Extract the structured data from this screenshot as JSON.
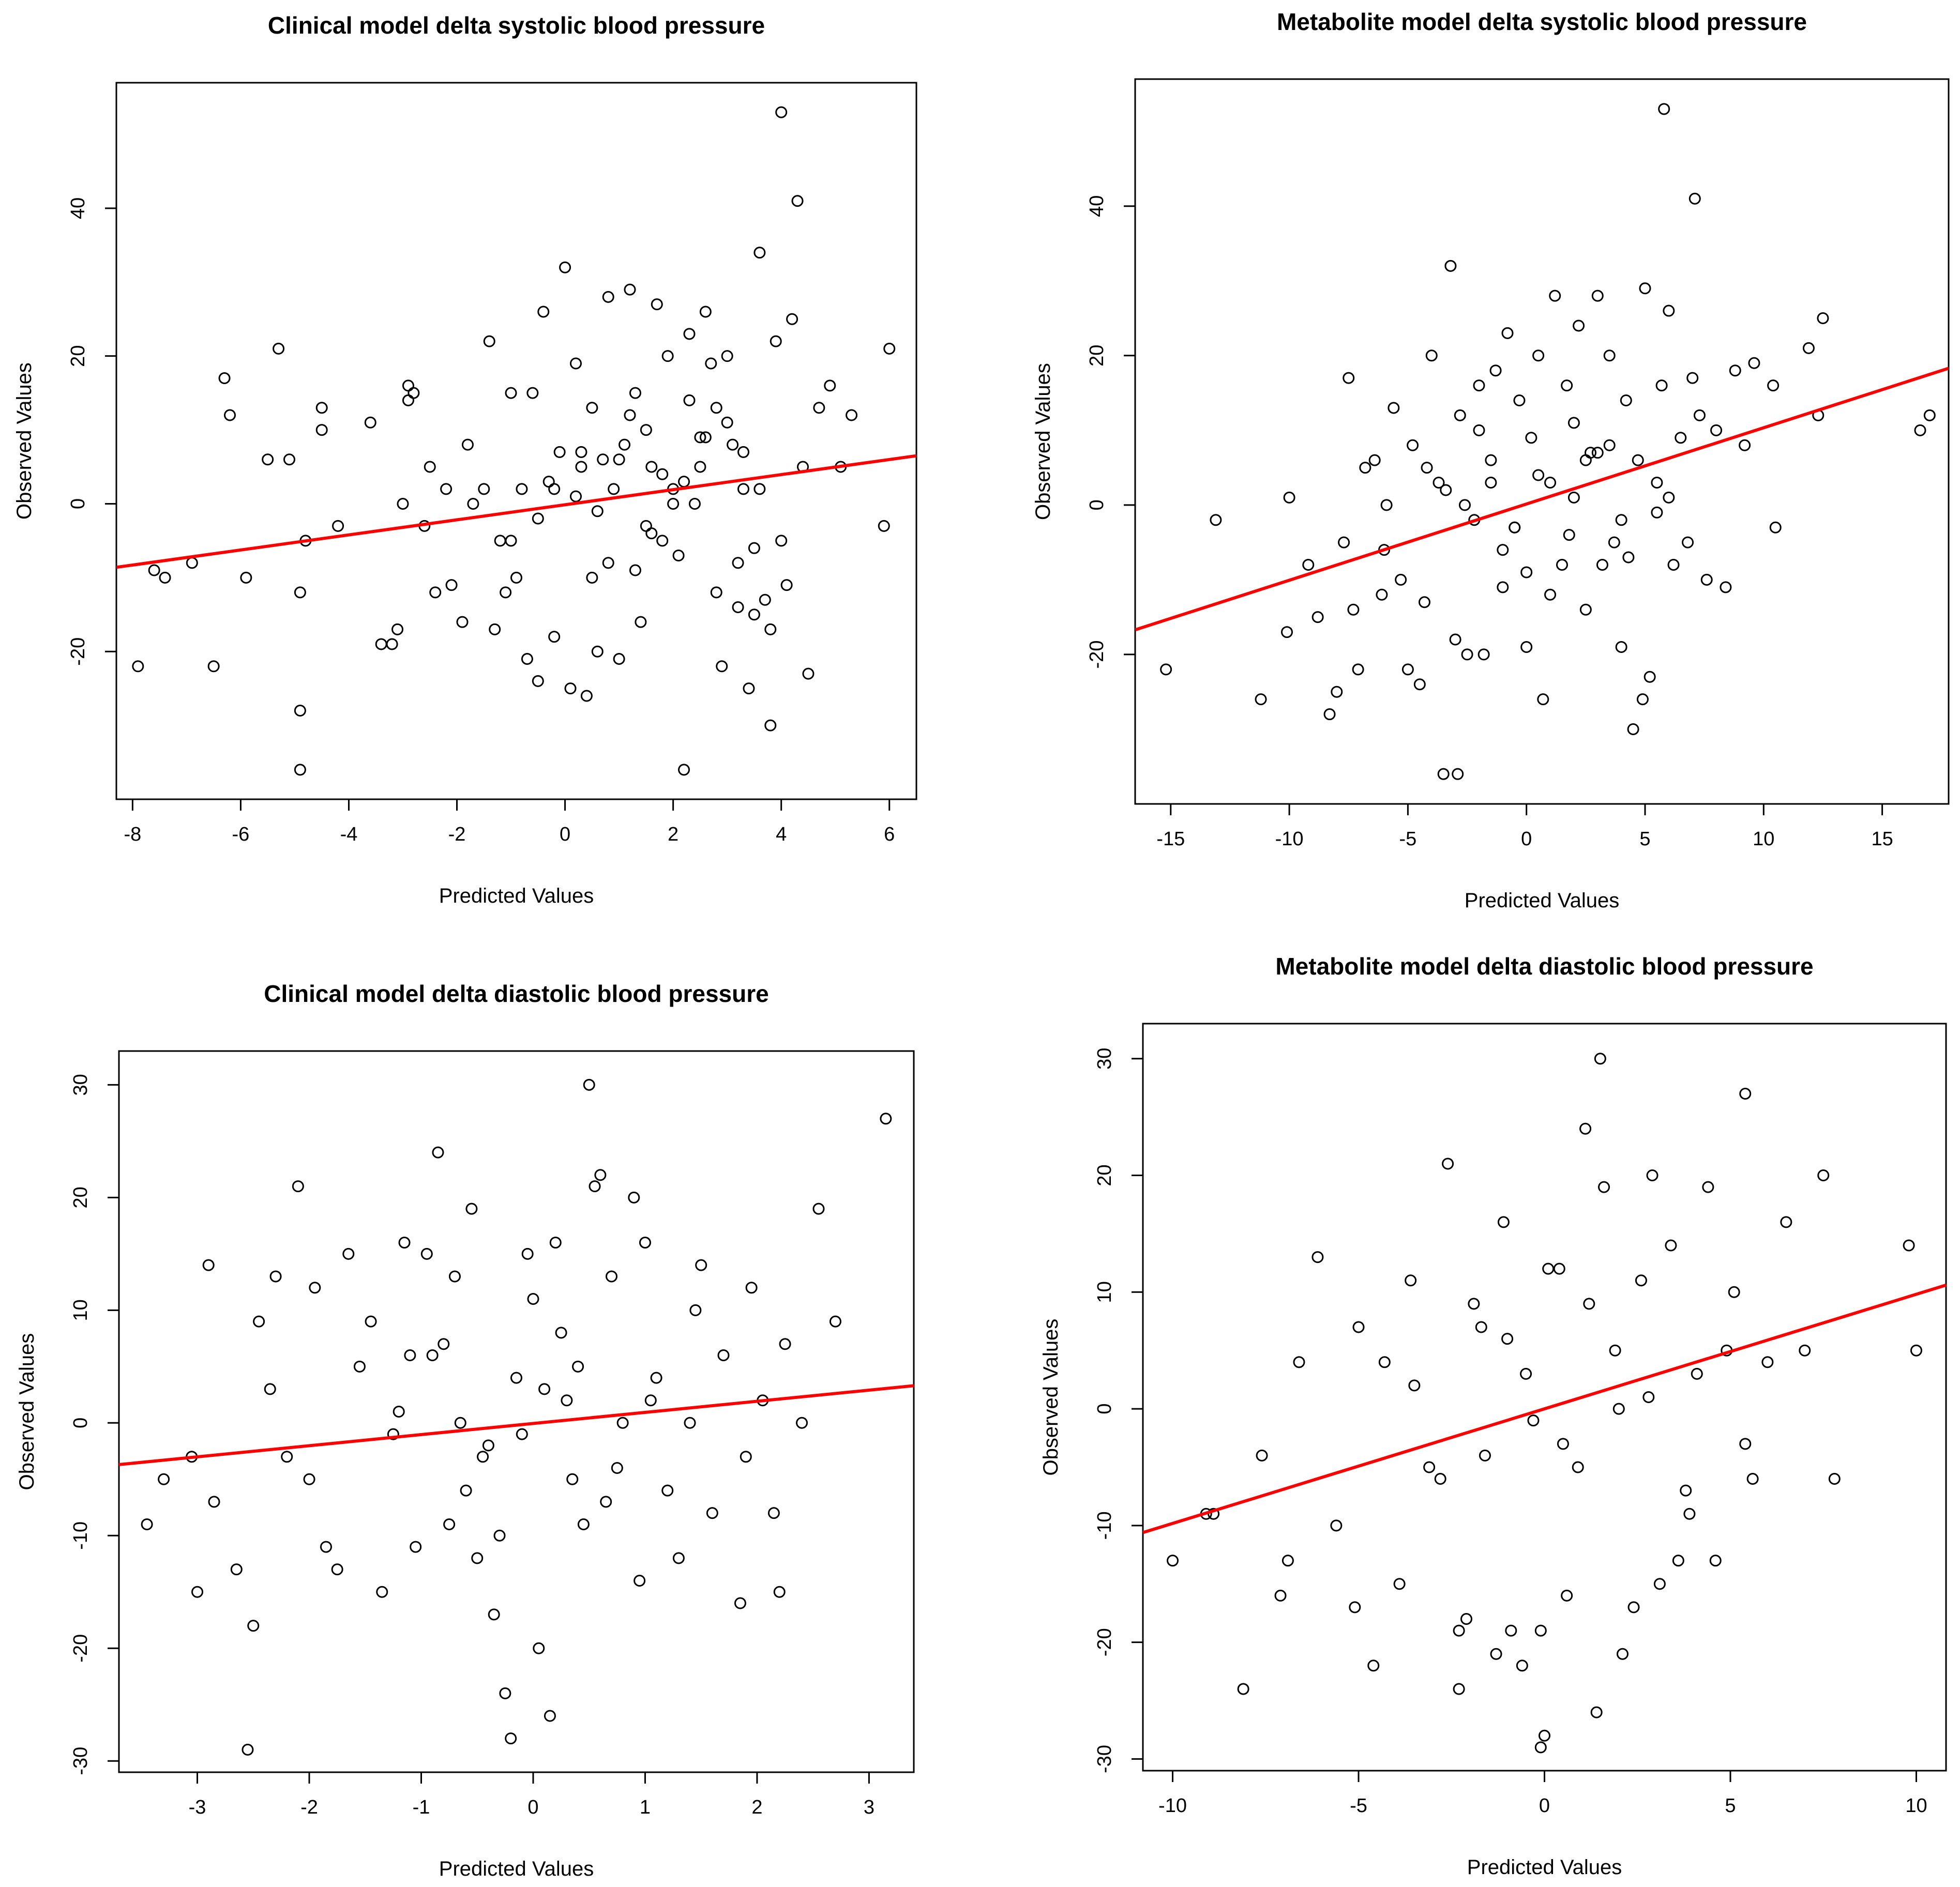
{
  "chart_data": [
    {
      "type": "scatter",
      "title": "Clinical model delta systolic blood pressure",
      "xlabel": "Predicted Values",
      "ylabel": "Observed Values",
      "xlim": [
        -8.3,
        6.5
      ],
      "ylim": [
        -40,
        57
      ],
      "xticks": [
        "-8",
        "-6",
        "-4",
        "-2",
        "0",
        "2",
        "4",
        "6"
      ],
      "yticks": [
        "-20",
        "0",
        "20",
        "40"
      ],
      "x": [
        -7.9,
        -7.6,
        -7.4,
        -6.9,
        -6.5,
        -6.3,
        -6.2,
        -5.9,
        -5.5,
        -5.3,
        -5.1,
        -4.9,
        -4.9,
        -4.9,
        -4.8,
        -4.5,
        -4.5,
        -4.2,
        -3.6,
        -3.4,
        -3.2,
        -3.1,
        -3.0,
        -2.9,
        -2.9,
        -2.8,
        -2.6,
        -2.5,
        -2.4,
        -2.2,
        -2.1,
        -1.9,
        -1.8,
        -1.7,
        -1.5,
        -1.4,
        -1.3,
        -1.2,
        -1.1,
        -1.0,
        -0.9,
        -0.8,
        -0.7,
        -0.6,
        -0.5,
        -0.4,
        -0.3,
        -0.2,
        -0.1,
        0.0,
        0.1,
        0.2,
        0.3,
        0.4,
        0.5,
        0.6,
        0.7,
        0.8,
        0.9,
        1.0,
        1.1,
        1.2,
        1.3,
        1.4,
        1.5,
        1.6,
        1.7,
        1.8,
        1.9,
        2.0,
        2.1,
        2.2,
        2.3,
        2.4,
        2.5,
        2.6,
        2.7,
        2.8,
        2.9,
        3.0,
        3.1,
        3.2,
        3.3,
        3.4,
        3.5,
        3.6,
        3.7,
        3.8,
        3.9,
        4.0,
        4.1,
        4.2,
        4.3,
        4.4,
        4.5,
        4.7,
        4.9,
        5.1,
        5.3,
        5.9,
        6.0,
        0.2,
        0.8,
        1.5,
        2.5,
        3.5,
        -1.0,
        -0.2,
        1.2,
        2.2,
        3.2,
        4.0,
        1.8,
        2.8,
        0.5,
        1.0,
        2.0,
        3.0,
        3.8,
        0.3,
        1.3,
        2.3,
        3.3,
        -0.5,
        0.6,
        1.6,
        2.6,
        3.6
      ],
      "y": [
        -22,
        -9,
        -10,
        -8,
        -22,
        17,
        12,
        -10,
        6,
        21,
        6,
        -12,
        -28,
        -36,
        -5,
        13,
        10,
        -3,
        11,
        -19,
        -19,
        -17,
        0,
        16,
        14,
        15,
        -3,
        5,
        -12,
        2,
        -11,
        -16,
        8,
        0,
        2,
        22,
        -17,
        -5,
        -12,
        15,
        -10,
        2,
        -21,
        15,
        -24,
        26,
        3,
        -18,
        7,
        32,
        -25,
        19,
        7,
        -26,
        13,
        -20,
        6,
        28,
        2,
        -21,
        8,
        29,
        15,
        -16,
        10,
        5,
        27,
        -5,
        20,
        2,
        -7,
        -36,
        23,
        0,
        5,
        26,
        19,
        13,
        -22,
        20,
        8,
        -14,
        2,
        -25,
        -15,
        34,
        -13,
        -30,
        22,
        53,
        -11,
        25,
        41,
        5,
        -23,
        13,
        16,
        5,
        12,
        -3,
        21,
        1,
        -8,
        -3,
        9,
        -6,
        -5,
        2,
        12,
        3,
        -8,
        -5,
        4,
        -12,
        -10,
        6,
        0,
        11,
        -17,
        5,
        -9,
        14,
        7,
        -2,
        -1,
        -4,
        9,
        2
      ],
      "fit": {
        "x": [
          -8.3,
          6.5
        ],
        "y": [
          -8.6,
          6.5
        ]
      }
    },
    {
      "type": "scatter",
      "title": "Metabolite model delta systolic blood pressure",
      "xlabel": "Predicted Values",
      "ylabel": "Observed Values",
      "xlim": [
        -16.5,
        17.8
      ],
      "ylim": [
        -40,
        57
      ],
      "xticks": [
        "-15",
        "-10",
        "-5",
        "0",
        "5",
        "10",
        "15"
      ],
      "yticks": [
        "-20",
        "0",
        "20",
        "40"
      ],
      "x": [
        -15.2,
        -13.1,
        -11.2,
        -10.1,
        -10.0,
        -9.2,
        -8.8,
        -8.3,
        -8.0,
        -7.7,
        -7.5,
        -7.3,
        -7.1,
        -6.8,
        -6.4,
        -6.1,
        -5.9,
        -5.6,
        -5.3,
        -5.0,
        -4.8,
        -4.5,
        -4.3,
        -4.0,
        -3.7,
        -3.5,
        -3.2,
        -3.0,
        -2.8,
        -2.5,
        -2.2,
        -2.0,
        -1.8,
        -1.5,
        -1.3,
        -1.0,
        -0.8,
        -0.5,
        -0.3,
        0.0,
        0.2,
        0.5,
        0.7,
        1.0,
        1.2,
        1.5,
        1.7,
        2.0,
        2.2,
        2.5,
        2.7,
        3.0,
        3.2,
        3.5,
        3.7,
        4.0,
        4.2,
        4.5,
        4.7,
        5.0,
        5.2,
        5.5,
        5.7,
        6.0,
        6.2,
        6.5,
        6.8,
        7.0,
        7.3,
        7.6,
        8.0,
        8.4,
        8.8,
        9.2,
        9.6,
        10.4,
        10.5,
        11.9,
        12.3,
        12.5,
        16.6,
        17.0,
        5.8,
        7.1,
        -2.9,
        4.9,
        -3.4,
        -2.6,
        -1.0,
        0.5,
        1.8,
        3.0,
        4.3,
        -4.2,
        -2.0,
        0.0,
        2.0,
        4.0,
        6.0,
        -6.0,
        -1.5,
        1.0,
        3.5,
        5.5,
        -0.5,
        2.5
      ],
      "y": [
        -22,
        -2,
        -26,
        -17,
        1,
        -8,
        -15,
        -28,
        -25,
        -5,
        17,
        -14,
        -22,
        5,
        6,
        -12,
        0,
        13,
        -10,
        -22,
        8,
        -24,
        -13,
        20,
        3,
        -36,
        32,
        -18,
        12,
        -20,
        -2,
        16,
        -20,
        6,
        18,
        -11,
        23,
        -3,
        14,
        -19,
        9,
        20,
        -26,
        3,
        28,
        -8,
        16,
        1,
        24,
        -14,
        7,
        28,
        -8,
        20,
        -5,
        -19,
        14,
        -30,
        6,
        29,
        -23,
        3,
        16,
        26,
        -8,
        9,
        -5,
        17,
        12,
        -10,
        10,
        -11,
        18,
        8,
        19,
        16,
        -3,
        21,
        12,
        25,
        10,
        12,
        53,
        41,
        -36,
        -26,
        2,
        0,
        -6,
        4,
        -4,
        7,
        -7,
        5,
        10,
        -9,
        11,
        -2,
        1,
        -6,
        3,
        -12,
        8,
        -1,
        -3,
        6
      ],
      "fit": {
        "x": [
          -16.5,
          17.8
        ],
        "y": [
          -16.7,
          18.3
        ]
      }
    },
    {
      "type": "scatter",
      "title": "Clinical model delta diastolic blood pressure",
      "xlabel": "Predicted Values",
      "ylabel": "Observed Values",
      "xlim": [
        -3.7,
        3.4
      ],
      "ylim": [
        -31,
        33
      ],
      "xticks": [
        "-3",
        "-2",
        "-1",
        "0",
        "1",
        "2",
        "3"
      ],
      "yticks": [
        "-30",
        "-20",
        "-10",
        "0",
        "10",
        "20",
        "30"
      ],
      "x": [
        -3.45,
        -3.3,
        -3.05,
        -3.0,
        -2.9,
        -2.85,
        -2.65,
        -2.55,
        -2.5,
        -2.45,
        -2.35,
        -2.3,
        -2.2,
        -2.1,
        -2.0,
        -1.95,
        -1.85,
        -1.75,
        -1.65,
        -1.55,
        -1.45,
        -1.35,
        -1.25,
        -1.15,
        -1.1,
        -1.05,
        -0.95,
        -0.85,
        -0.75,
        -0.7,
        -0.65,
        -0.55,
        -0.5,
        -0.45,
        -0.35,
        -0.25,
        -0.2,
        -0.15,
        -0.05,
        0.05,
        0.15,
        0.2,
        0.3,
        0.4,
        0.5,
        0.55,
        0.6,
        0.65,
        0.7,
        0.8,
        0.9,
        0.95,
        1.0,
        1.1,
        1.2,
        1.3,
        1.4,
        1.45,
        1.5,
        1.6,
        1.7,
        1.85,
        1.9,
        1.95,
        2.05,
        2.15,
        2.2,
        2.25,
        2.4,
        2.55,
        2.7,
        3.15,
        -0.3,
        0.1,
        0.35,
        -0.8,
        -0.4,
        0.0,
        0.45,
        -1.2,
        -0.6,
        0.25,
        0.75,
        1.05,
        -0.1,
        -0.9
      ],
      "y": [
        -9,
        -5,
        -3,
        -15,
        14,
        -7,
        -13,
        -29,
        -18,
        9,
        3,
        13,
        -3,
        21,
        -5,
        12,
        -11,
        -13,
        15,
        5,
        9,
        -15,
        -1,
        16,
        6,
        -11,
        15,
        24,
        -9,
        13,
        0,
        19,
        -12,
        -3,
        -17,
        -24,
        -28,
        4,
        15,
        -20,
        -26,
        16,
        2,
        5,
        30,
        21,
        22,
        -7,
        13,
        0,
        20,
        -14,
        16,
        4,
        -6,
        -12,
        0,
        10,
        14,
        -8,
        6,
        -16,
        -3,
        12,
        2,
        -8,
        -15,
        7,
        0,
        19,
        9,
        27,
        -10,
        3,
        -5,
        7,
        -2,
        11,
        -9,
        1,
        -6,
        8,
        -4,
        2,
        -1,
        6
      ],
      "fit": {
        "x": [
          -3.7,
          3.4
        ],
        "y": [
          -3.7,
          3.3
        ]
      }
    },
    {
      "type": "scatter",
      "title": "Metabolite model delta diastolic blood pressure",
      "xlabel": "Predicted Values",
      "ylabel": "Observed Values",
      "xlim": [
        -10.8,
        10.8
      ],
      "ylim": [
        -31,
        33
      ],
      "xticks": [
        "-10",
        "-5",
        "0",
        "5",
        "10"
      ],
      "yticks": [
        "-30",
        "-20",
        "-10",
        "0",
        "10",
        "20",
        "30"
      ],
      "x": [
        -10.0,
        -9.1,
        -8.9,
        -8.1,
        -7.6,
        -7.1,
        -6.9,
        -6.6,
        -6.1,
        -5.6,
        -5.1,
        -4.6,
        -4.3,
        -3.9,
        -3.6,
        -3.1,
        -2.6,
        -2.3,
        -2.1,
        -1.9,
        -1.6,
        -1.3,
        -1.1,
        -0.9,
        -0.6,
        -0.3,
        -0.1,
        0.1,
        0.4,
        0.6,
        0.9,
        1.1,
        1.4,
        1.6,
        1.9,
        2.1,
        2.4,
        2.6,
        2.9,
        3.1,
        3.4,
        3.6,
        3.9,
        4.1,
        4.4,
        4.6,
        4.9,
        5.1,
        5.4,
        5.6,
        6.0,
        6.5,
        7.0,
        7.5,
        7.8,
        9.8,
        10.0,
        0.0,
        -0.1,
        -2.3,
        -1.7,
        1.5,
        5.4,
        -3.5,
        -1.0,
        0.5,
        2.0,
        -5.0,
        -2.8,
        1.2,
        3.8,
        -0.5,
        2.8
      ],
      "y": [
        -13,
        -9,
        -9,
        -24,
        -4,
        -16,
        -13,
        4,
        13,
        -10,
        -17,
        -22,
        4,
        -15,
        11,
        -5,
        21,
        -19,
        -18,
        9,
        -4,
        -21,
        16,
        -19,
        -22,
        -1,
        -19,
        12,
        12,
        -16,
        -5,
        24,
        -26,
        19,
        5,
        -21,
        -17,
        11,
        20,
        -15,
        14,
        -13,
        -9,
        3,
        19,
        -13,
        5,
        10,
        27,
        -6,
        4,
        16,
        5,
        20,
        -6,
        14,
        5,
        -28,
        -29,
        -24,
        7,
        30,
        -3,
        2,
        6,
        -3,
        0,
        7,
        -6,
        9,
        -7,
        3,
        1
      ],
      "fit": {
        "x": [
          -10.8,
          10.8
        ],
        "y": [
          -10.6,
          10.6
        ]
      }
    }
  ]
}
